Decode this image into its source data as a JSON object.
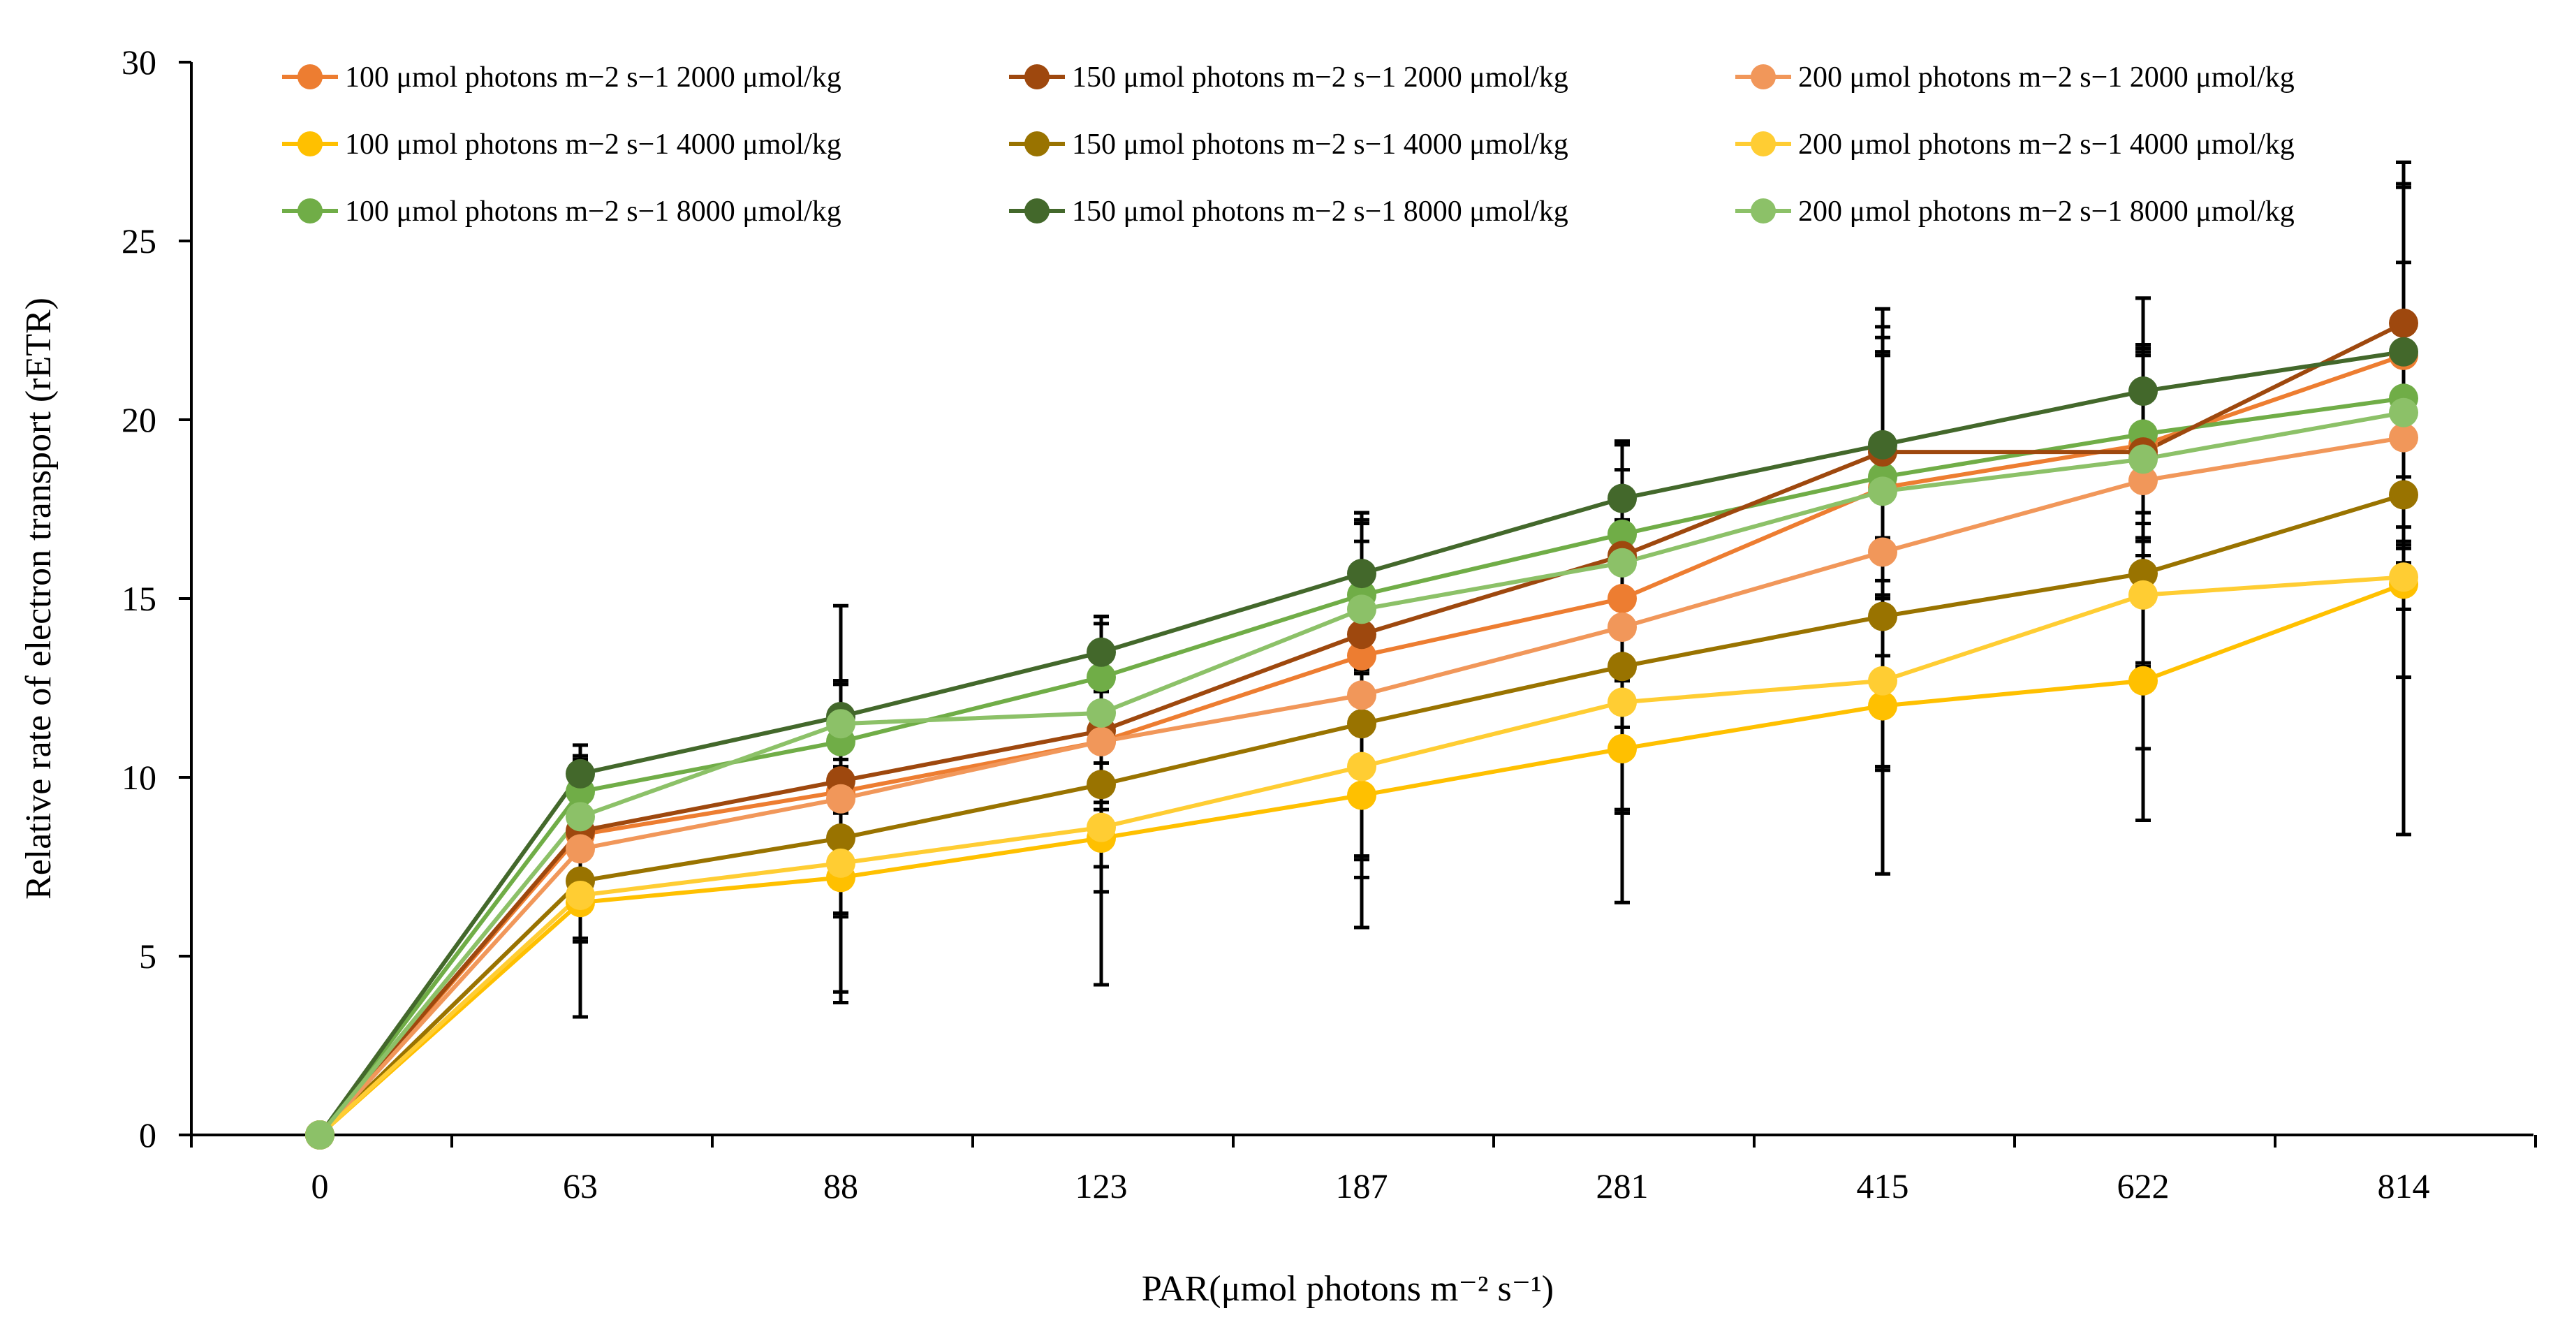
{
  "chart_data": {
    "type": "line",
    "title": "",
    "xlabel": "PAR(μmol photons m⁻² s⁻¹)",
    "ylabel": "Relative rate of electron transport (rETR)",
    "categories": [
      "0",
      "63",
      "88",
      "123",
      "187",
      "281",
      "415",
      "622",
      "814"
    ],
    "ylim": [
      0,
      30
    ],
    "yticks": [
      "0",
      "5",
      "10",
      "15",
      "20",
      "25",
      "30"
    ],
    "grid": false,
    "legend_position": "top",
    "series": [
      {
        "name": "100 μmol photons m−2 s−1 2000 μmol/kg",
        "color": "#ED7D31",
        "values": [
          0,
          8.4,
          9.6,
          11.0,
          13.4,
          15.0,
          18.1,
          19.3,
          21.8
        ],
        "error": [
          0,
          1.5,
          2.2,
          2.5,
          3.2,
          3.6,
          3.8,
          2.6,
          4.8
        ]
      },
      {
        "name": "100 μmol photons m−2 s−1 4000 μmol/kg",
        "color": "#FFC000",
        "values": [
          0,
          6.5,
          7.2,
          8.3,
          9.5,
          10.8,
          12.0,
          12.7,
          15.4
        ],
        "error": [
          0,
          3.2,
          3.5,
          4.1,
          3.7,
          4.3,
          4.7,
          3.9,
          7.0
        ]
      },
      {
        "name": "100 μmol photons m−2 s−1 8000 μmol/kg",
        "color": "#70AD47",
        "values": [
          0,
          9.6,
          11.0,
          12.8,
          15.1,
          16.8,
          18.4,
          19.6,
          20.6
        ],
        "error": [
          0,
          1.0,
          1.6,
          1.5,
          2.1,
          2.6,
          3.4,
          2.2,
          5.9
        ]
      },
      {
        "name": "150 μmol photons m−2 s−1 2000 μmol/kg",
        "color": "#9E480E",
        "values": [
          0,
          8.5,
          9.9,
          11.3,
          14.0,
          16.2,
          19.1,
          19.1,
          22.7
        ],
        "error": [
          0,
          1.3,
          2.8,
          2.0,
          3.4,
          3.2,
          2.8,
          2.9,
          4.5
        ]
      },
      {
        "name": "150 μmol photons m−2 s−1 4000 μmol/kg",
        "color": "#997300",
        "values": [
          0,
          7.1,
          8.3,
          9.8,
          11.5,
          13.1,
          14.5,
          15.7,
          17.9
        ],
        "error": [
          0,
          1.7,
          2.2,
          3.0,
          3.7,
          4.1,
          4.3,
          4.9,
          1.5
        ]
      },
      {
        "name": "150 μmol photons m−2 s−1 8000 μmol/kg",
        "color": "#43682B",
        "values": [
          0,
          10.1,
          11.7,
          13.5,
          15.7,
          17.8,
          19.3,
          20.8,
          21.9
        ],
        "error": [
          0,
          0.8,
          1.0,
          1.0,
          1.7,
          1.6,
          3.8,
          2.6,
          5.3
        ]
      },
      {
        "name": "200 μmol photons m−2 s−1 2000 μmol/kg",
        "color": "#F1975A",
        "values": [
          0,
          8.0,
          9.4,
          11.0,
          12.3,
          14.2,
          16.3,
          18.3,
          19.5
        ],
        "error": [
          0,
          2.6,
          5.4,
          3.5,
          5.1,
          5.2,
          6.0,
          5.1,
          3.0
        ]
      },
      {
        "name": "200 μmol photons m−2 s−1 4000 μmol/kg",
        "color": "#FFCD33",
        "values": [
          0,
          6.7,
          7.6,
          8.6,
          10.3,
          12.1,
          12.7,
          15.1,
          15.6
        ],
        "error": [
          0,
          1.2,
          1.4,
          1.8,
          2.6,
          3.0,
          2.4,
          2.0,
          2.8
        ]
      },
      {
        "name": "200 μmol photons m−2 s−1 8000 μmol/kg",
        "color": "#8CC168",
        "values": [
          0,
          8.9,
          11.5,
          11.8,
          14.7,
          16.0,
          18.0,
          18.9,
          20.2
        ],
        "error": [
          0,
          1.6,
          1.2,
          2.7,
          2.4,
          3.3,
          4.6,
          3.2,
          4.2
        ]
      }
    ]
  }
}
